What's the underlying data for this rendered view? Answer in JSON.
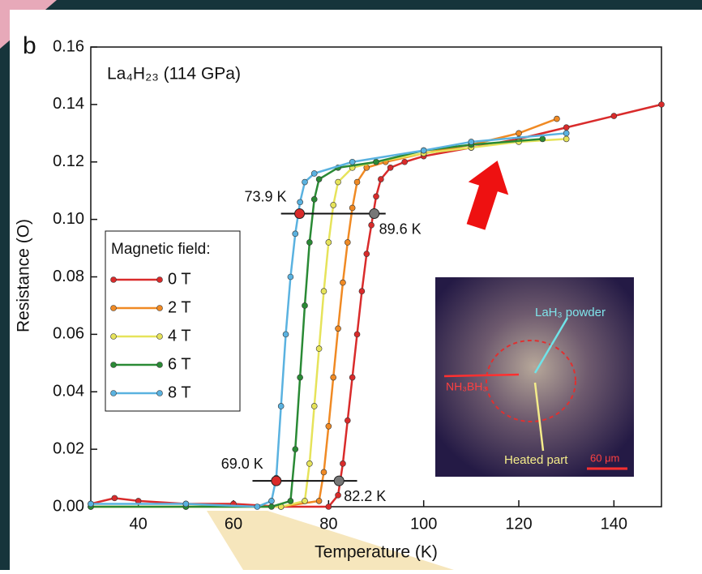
{
  "chart_data": {
    "type": "line",
    "panel_label": "b",
    "title": "La₄H₂₃ (114 GPa)",
    "x_label": "Temperature (K)",
    "y_label": "Resistance (O)",
    "xlim": [
      30,
      150
    ],
    "xticks": [
      40,
      60,
      80,
      100,
      120,
      140
    ],
    "ylim": [
      0,
      0.16
    ],
    "yticks": [
      {
        "value": 0,
        "label": "0.00"
      },
      {
        "value": 0.02,
        "label": "0.02"
      },
      {
        "value": 0.04,
        "label": "0.04"
      },
      {
        "value": 0.06,
        "label": "0.06"
      },
      {
        "value": 0.08,
        "label": "0.08"
      },
      {
        "value": 0.1,
        "label": "0.10"
      },
      {
        "value": 0.12,
        "label": "0.12"
      },
      {
        "value": 0.14,
        "label": "0.14"
      },
      {
        "value": 0.16,
        "label": "0.16"
      }
    ],
    "legend": {
      "title": "Magnetic field:",
      "position": "left"
    },
    "series": [
      {
        "name": "0 T",
        "color": "#d92b2b",
        "x": [
          30,
          35,
          40,
          50,
          60,
          70,
          80,
          82,
          83,
          84,
          85,
          86,
          87,
          88,
          89,
          90,
          91,
          93,
          96,
          100,
          110,
          120,
          130,
          140,
          150
        ],
        "values": [
          0.001,
          0.003,
          0.002,
          0.001,
          0.001,
          0,
          0,
          0.004,
          0.015,
          0.03,
          0.045,
          0.06,
          0.075,
          0.088,
          0.098,
          0.108,
          0.114,
          0.118,
          0.12,
          0.122,
          0.125,
          0.128,
          0.132,
          0.136,
          0.14
        ]
      },
      {
        "name": "2 T",
        "color": "#f08a24",
        "x": [
          30,
          50,
          70,
          78,
          79,
          80,
          81,
          82,
          83,
          84,
          85,
          86,
          88,
          92,
          100,
          110,
          120,
          128
        ],
        "values": [
          0,
          0,
          0,
          0.002,
          0.012,
          0.028,
          0.045,
          0.062,
          0.078,
          0.092,
          0.104,
          0.113,
          0.118,
          0.12,
          0.123,
          0.126,
          0.13,
          0.135
        ]
      },
      {
        "name": "4 T",
        "color": "#e6e35a",
        "x": [
          30,
          50,
          70,
          75,
          76,
          77,
          78,
          79,
          80,
          81,
          82,
          85,
          90,
          100,
          110,
          120,
          130
        ],
        "values": [
          0,
          0,
          0,
          0.002,
          0.015,
          0.035,
          0.055,
          0.075,
          0.092,
          0.105,
          0.113,
          0.118,
          0.12,
          0.123,
          0.125,
          0.127,
          0.128
        ]
      },
      {
        "name": "6 T",
        "color": "#2a8a35",
        "x": [
          30,
          50,
          68,
          72,
          73,
          74,
          75,
          76,
          77,
          78,
          82,
          90,
          100,
          110,
          125
        ],
        "values": [
          0,
          0,
          0,
          0.002,
          0.02,
          0.045,
          0.07,
          0.092,
          0.107,
          0.114,
          0.118,
          0.12,
          0.124,
          0.126,
          0.128
        ]
      },
      {
        "name": "8 T",
        "color": "#5ab2e0",
        "x": [
          30,
          50,
          65,
          68,
          69,
          70,
          71,
          72,
          73,
          74,
          75,
          77,
          85,
          100,
          110,
          130
        ],
        "values": [
          0.001,
          0.001,
          0,
          0.002,
          0.01,
          0.035,
          0.06,
          0.08,
          0.095,
          0.106,
          0.113,
          0.116,
          0.12,
          0.124,
          0.127,
          0.13
        ]
      }
    ],
    "annotations": [
      {
        "y": 0.102,
        "xrange": [
          70,
          92
        ],
        "points": [
          {
            "x": 73.9,
            "label": "73.9 K",
            "color": "#d92b2b"
          },
          {
            "x": 89.6,
            "label": "89.6 K",
            "color": "#777777"
          }
        ]
      },
      {
        "y": 0.009,
        "xrange": [
          64,
          86
        ],
        "points": [
          {
            "x": 69.0,
            "label": "69.0 K",
            "color": "#d92b2b"
          },
          {
            "x": 82.2,
            "label": "82.2 K",
            "color": "#777777"
          }
        ]
      }
    ],
    "inset": {
      "labels": [
        "LaH₃ powder",
        "NH₃BH₃",
        "Heated part",
        "60 μm"
      ]
    }
  }
}
